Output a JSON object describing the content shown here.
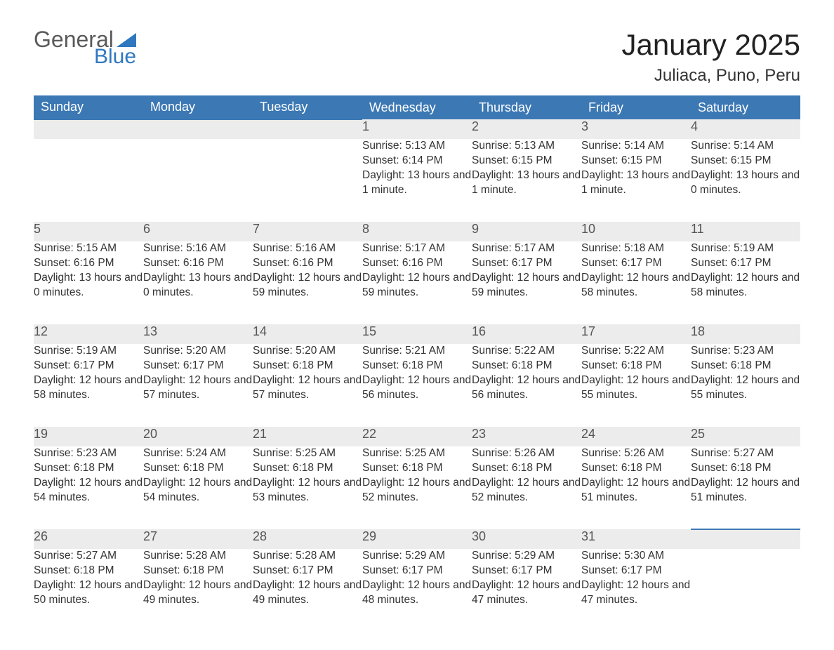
{
  "logo": {
    "text_general": "General",
    "text_blue": "Blue",
    "tri_color": "#2f78bf"
  },
  "title": "January 2025",
  "location": "Juliaca, Puno, Peru",
  "colors": {
    "header_bg": "#3c78b4",
    "header_text": "#ffffff",
    "daynum_bg": "#ececec",
    "daynum_border": "#3c78b4",
    "body_text": "#333333"
  },
  "weekdays": [
    "Sunday",
    "Monday",
    "Tuesday",
    "Wednesday",
    "Thursday",
    "Friday",
    "Saturday"
  ],
  "weeks": [
    [
      null,
      null,
      null,
      {
        "n": "1",
        "sr": "5:13 AM",
        "ss": "6:14 PM",
        "dl": "13 hours and 1 minute."
      },
      {
        "n": "2",
        "sr": "5:13 AM",
        "ss": "6:15 PM",
        "dl": "13 hours and 1 minute."
      },
      {
        "n": "3",
        "sr": "5:14 AM",
        "ss": "6:15 PM",
        "dl": "13 hours and 1 minute."
      },
      {
        "n": "4",
        "sr": "5:14 AM",
        "ss": "6:15 PM",
        "dl": "13 hours and 0 minutes."
      }
    ],
    [
      {
        "n": "5",
        "sr": "5:15 AM",
        "ss": "6:16 PM",
        "dl": "13 hours and 0 minutes."
      },
      {
        "n": "6",
        "sr": "5:16 AM",
        "ss": "6:16 PM",
        "dl": "13 hours and 0 minutes."
      },
      {
        "n": "7",
        "sr": "5:16 AM",
        "ss": "6:16 PM",
        "dl": "12 hours and 59 minutes."
      },
      {
        "n": "8",
        "sr": "5:17 AM",
        "ss": "6:16 PM",
        "dl": "12 hours and 59 minutes."
      },
      {
        "n": "9",
        "sr": "5:17 AM",
        "ss": "6:17 PM",
        "dl": "12 hours and 59 minutes."
      },
      {
        "n": "10",
        "sr": "5:18 AM",
        "ss": "6:17 PM",
        "dl": "12 hours and 58 minutes."
      },
      {
        "n": "11",
        "sr": "5:19 AM",
        "ss": "6:17 PM",
        "dl": "12 hours and 58 minutes."
      }
    ],
    [
      {
        "n": "12",
        "sr": "5:19 AM",
        "ss": "6:17 PM",
        "dl": "12 hours and 58 minutes."
      },
      {
        "n": "13",
        "sr": "5:20 AM",
        "ss": "6:17 PM",
        "dl": "12 hours and 57 minutes."
      },
      {
        "n": "14",
        "sr": "5:20 AM",
        "ss": "6:18 PM",
        "dl": "12 hours and 57 minutes."
      },
      {
        "n": "15",
        "sr": "5:21 AM",
        "ss": "6:18 PM",
        "dl": "12 hours and 56 minutes."
      },
      {
        "n": "16",
        "sr": "5:22 AM",
        "ss": "6:18 PM",
        "dl": "12 hours and 56 minutes."
      },
      {
        "n": "17",
        "sr": "5:22 AM",
        "ss": "6:18 PM",
        "dl": "12 hours and 55 minutes."
      },
      {
        "n": "18",
        "sr": "5:23 AM",
        "ss": "6:18 PM",
        "dl": "12 hours and 55 minutes."
      }
    ],
    [
      {
        "n": "19",
        "sr": "5:23 AM",
        "ss": "6:18 PM",
        "dl": "12 hours and 54 minutes."
      },
      {
        "n": "20",
        "sr": "5:24 AM",
        "ss": "6:18 PM",
        "dl": "12 hours and 54 minutes."
      },
      {
        "n": "21",
        "sr": "5:25 AM",
        "ss": "6:18 PM",
        "dl": "12 hours and 53 minutes."
      },
      {
        "n": "22",
        "sr": "5:25 AM",
        "ss": "6:18 PM",
        "dl": "12 hours and 52 minutes."
      },
      {
        "n": "23",
        "sr": "5:26 AM",
        "ss": "6:18 PM",
        "dl": "12 hours and 52 minutes."
      },
      {
        "n": "24",
        "sr": "5:26 AM",
        "ss": "6:18 PM",
        "dl": "12 hours and 51 minutes."
      },
      {
        "n": "25",
        "sr": "5:27 AM",
        "ss": "6:18 PM",
        "dl": "12 hours and 51 minutes."
      }
    ],
    [
      {
        "n": "26",
        "sr": "5:27 AM",
        "ss": "6:18 PM",
        "dl": "12 hours and 50 minutes."
      },
      {
        "n": "27",
        "sr": "5:28 AM",
        "ss": "6:18 PM",
        "dl": "12 hours and 49 minutes."
      },
      {
        "n": "28",
        "sr": "5:28 AM",
        "ss": "6:17 PM",
        "dl": "12 hours and 49 minutes."
      },
      {
        "n": "29",
        "sr": "5:29 AM",
        "ss": "6:17 PM",
        "dl": "12 hours and 48 minutes."
      },
      {
        "n": "30",
        "sr": "5:29 AM",
        "ss": "6:17 PM",
        "dl": "12 hours and 47 minutes."
      },
      {
        "n": "31",
        "sr": "5:30 AM",
        "ss": "6:17 PM",
        "dl": "12 hours and 47 minutes."
      },
      null
    ]
  ],
  "labels": {
    "sunrise": "Sunrise:",
    "sunset": "Sunset:",
    "daylight": "Daylight:"
  }
}
